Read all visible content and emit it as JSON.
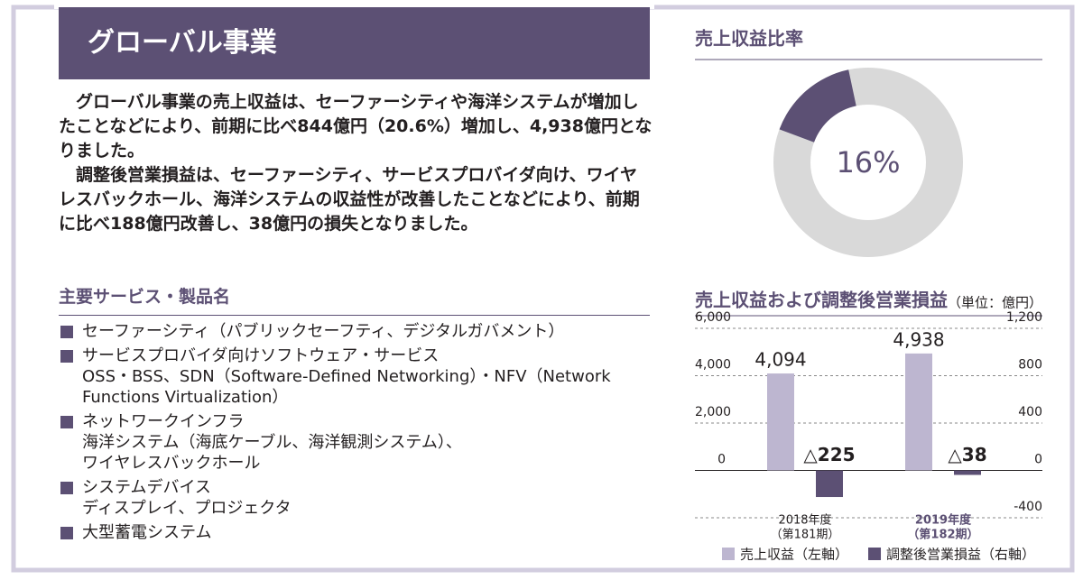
{
  "header": {
    "title": "グローバル事業"
  },
  "body": {
    "paragraphs": [
      "グローバル事業の売上収益は、セーファーシティや海洋システムが増加したことなどにより、前期に比べ844億円（20.6%）増加し、4,938億円となりました。",
      "調整後営業損益は、セーファーシティ、サービスプロバイダ向け、ワイヤレスバックホール、海洋システムの収益性が改善したことなどにより、前期に比べ188億円改善し、38億円の損失となりました。"
    ]
  },
  "services": {
    "heading": "主要サービス・製品名",
    "items": [
      {
        "name": "セーファーシティ（パブリックセーフティ、デジタルガバメント）",
        "details": []
      },
      {
        "name": "サービスプロバイダ向けソフトウェア・サービス",
        "details": [
          "OSS・BSS、SDN（Software-Defined Networking）・NFV（Network Functions Virtualization）"
        ]
      },
      {
        "name": "ネットワークインフラ",
        "details": [
          "海洋システム（海底ケーブル、海洋観測システム）、",
          "ワイヤレスバックホール"
        ]
      },
      {
        "name": "システムデバイス",
        "details": [
          "ディスプレイ、プロジェクタ"
        ]
      },
      {
        "name": "大型蓄電システム",
        "details": []
      }
    ]
  },
  "chart_data": [
    {
      "type": "pie",
      "title": "売上収益比率",
      "values": [
        16
      ],
      "value_labels": [
        "16%"
      ],
      "color": "#5c5074",
      "rest_color": "#d9d9d9"
    },
    {
      "type": "bar",
      "title": "売上収益および調整後営業損益",
      "unit": "（単位：億円）",
      "categories": [
        [
          "2018年度",
          "（第181期）"
        ],
        [
          "2019年度",
          "（第182期）"
        ]
      ],
      "highlight_index": 1,
      "series": [
        {
          "name": "売上収益（左軸）",
          "color": "#bdb6d0",
          "values": [
            4094,
            4938
          ],
          "value_labels": [
            "4,094",
            "4,938"
          ]
        },
        {
          "name": "調整後営業損益（右軸）",
          "color": "#5c5074",
          "axis": "y2",
          "values": [
            -225,
            -38
          ],
          "value_labels": [
            "△225",
            "△38"
          ]
        }
      ],
      "ylim": [
        -2000,
        6000
      ],
      "yticks": [
        0,
        {
          "value": 2000,
          "label": "2,000"
        },
        {
          "value": 4000,
          "label": "4,000"
        },
        {
          "value": 6000,
          "label": "6,000"
        }
      ],
      "y2lim": [
        -400,
        1200
      ],
      "y2ticks": [
        -400,
        0,
        400,
        800,
        {
          "value": 1200,
          "label": "1,200"
        }
      ],
      "grid": true
    }
  ]
}
